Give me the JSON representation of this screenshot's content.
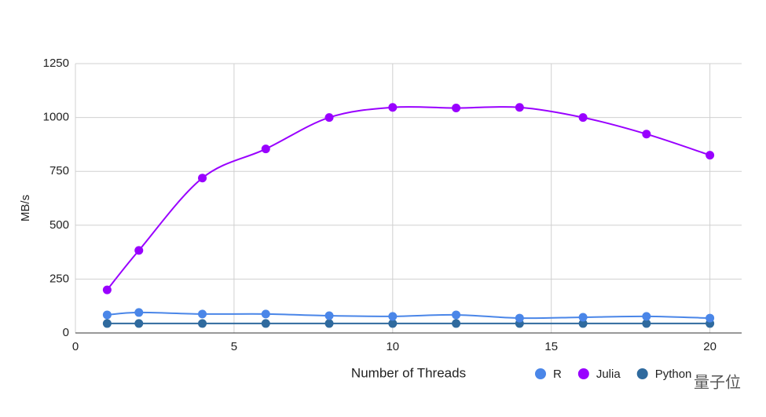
{
  "chart_data": {
    "type": "line",
    "x_label": "Number of Threads",
    "y_label": "MB/s",
    "x": [
      1,
      2,
      4,
      6,
      8,
      10,
      12,
      14,
      16,
      18,
      20
    ],
    "series": [
      {
        "name": "R",
        "color": "#4a86e8",
        "values": [
          84,
          95,
          88,
          88,
          80,
          77,
          84,
          69,
          73,
          77,
          69
        ]
      },
      {
        "name": "Julia",
        "color": "#9900ff",
        "values": [
          200,
          383,
          719,
          854,
          1000,
          1047,
          1044,
          1047,
          1000,
          923,
          825
        ]
      },
      {
        "name": "Python",
        "color": "#2f6a9e",
        "values": [
          44,
          44,
          44,
          44,
          44,
          44,
          44,
          44,
          44,
          44,
          44
        ]
      }
    ],
    "xlim": [
      0,
      21
    ],
    "xticks": [
      0,
      5,
      10,
      15,
      20
    ],
    "ylim": [
      0,
      1250
    ],
    "yticks": [
      0,
      250,
      500,
      750,
      1000,
      1250
    ],
    "grid": true,
    "smooth": true,
    "legend": "bottom",
    "watermark": "量子位"
  }
}
